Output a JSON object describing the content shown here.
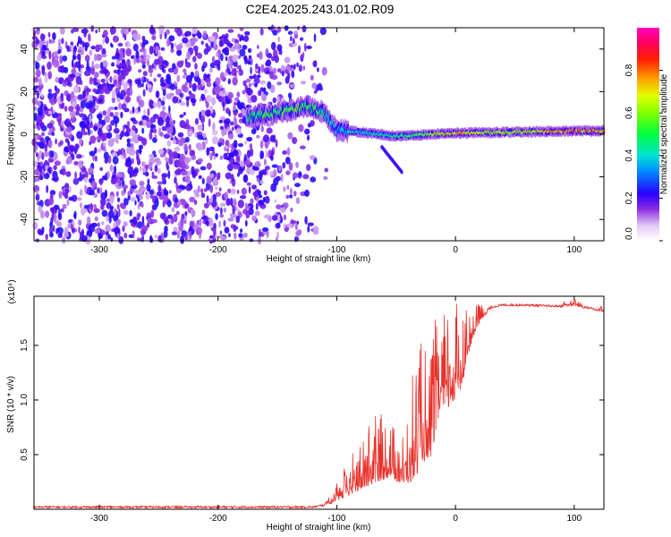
{
  "title": "C2E4.2025.243.01.02.R09",
  "chart_data": [
    {
      "type": "heatmap",
      "name": "spectrogram",
      "xlabel": "Height of straight line (km)",
      "ylabel": "Frequency (Hz)",
      "xlim": [
        -355,
        125
      ],
      "ylim": [
        -50,
        50
      ],
      "xticks": [
        -300,
        -200,
        -100,
        0,
        100
      ],
      "yticks": [
        -40,
        -20,
        0,
        20,
        40
      ],
      "colorbar": {
        "label": "Normalized spectral amplitude",
        "range": [
          0.0,
          1.0
        ],
        "ticks": [
          0.0,
          0.2,
          0.4,
          0.6,
          0.8
        ],
        "tick_labels": [
          "0.0",
          "0.2",
          "0.4",
          "0.6",
          "0.8"
        ]
      },
      "features": {
        "noise_region_x": [
          -355,
          -125
        ],
        "signal_track": {
          "x": [
            -175,
            -150,
            -125,
            -110,
            -100,
            -80,
            -50,
            -20,
            0,
            50,
            100,
            125
          ],
          "freq_hz": [
            8,
            10,
            13,
            10,
            2,
            1,
            -1,
            0,
            0.5,
            1,
            1.5,
            1.5
          ],
          "amplitude": [
            0.45,
            0.5,
            0.55,
            0.45,
            0.35,
            0.4,
            0.45,
            0.6,
            0.75,
            0.6,
            0.8,
            0.7
          ]
        }
      }
    },
    {
      "type": "line",
      "name": "snr",
      "xlabel": "Height of straight line (km)",
      "ylabel": "SNR (10 * v/v)",
      "scale_label": "(x10⁴)",
      "xlim": [
        -355,
        125
      ],
      "ylim": [
        0,
        1.95
      ],
      "xticks": [
        -300,
        -200,
        -100,
        0,
        100
      ],
      "yticks": [
        0.5,
        1.0,
        1.5
      ],
      "ytick_labels": [
        "0.5",
        "1.0",
        "1.5"
      ],
      "color": "#e8302a",
      "envelope": {
        "x": [
          -355,
          -120,
          -105,
          -95,
          -85,
          -75,
          -65,
          -55,
          -45,
          -35,
          -28,
          -22,
          -15,
          -8,
          0,
          5,
          10,
          20,
          30,
          40,
          60,
          80,
          100,
          115,
          125
        ],
        "base": [
          0.02,
          0.02,
          0.05,
          0.1,
          0.15,
          0.2,
          0.25,
          0.3,
          0.22,
          0.25,
          0.45,
          0.4,
          0.8,
          0.9,
          1.0,
          1.1,
          1.4,
          1.7,
          1.85,
          1.87,
          1.87,
          1.86,
          1.86,
          1.84,
          1.8
        ],
        "peak": [
          0.03,
          0.03,
          0.12,
          0.35,
          0.55,
          0.75,
          0.9,
          0.8,
          0.7,
          1.4,
          1.55,
          1.45,
          1.85,
          1.8,
          1.9,
          1.92,
          1.88,
          1.88,
          1.88,
          1.9,
          1.9,
          1.9,
          1.92,
          1.88,
          1.86
        ]
      }
    }
  ]
}
